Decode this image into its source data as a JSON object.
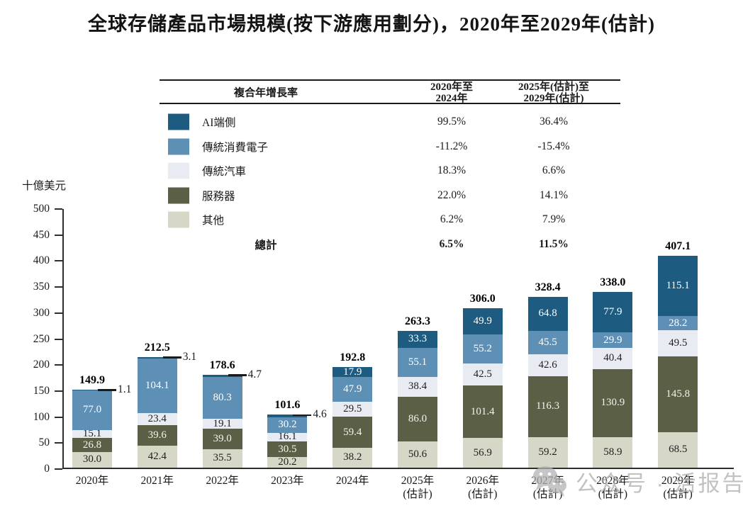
{
  "title": "全球存儲產品市場規模(按下游應用劃分)，2020年至2029年(估計)",
  "cagr_table": {
    "header": {
      "metric": "複合年增長率",
      "period1_line1": "2020年至",
      "period1_line2": "2024年",
      "period2_line1": "2025年(估計)至",
      "period2_line2": "2029年(估計)"
    },
    "rows": [
      {
        "label": "AI端側",
        "color": "#1D5B80",
        "period1": "99.5%",
        "period2": "36.4%"
      },
      {
        "label": "傳統消費電子",
        "color": "#5E90B6",
        "period1": "-11.2%",
        "period2": "-15.4%"
      },
      {
        "label": "傳統汽車",
        "color": "#E8ECF2",
        "period1": "18.3%",
        "period2": "6.6%"
      },
      {
        "label": "服務器",
        "color": "#5A5F45",
        "period1": "22.0%",
        "period2": "14.1%"
      },
      {
        "label": "其他",
        "color": "#D6D7C6",
        "period1": "6.2%",
        "period2": "7.9%"
      }
    ],
    "total_row": {
      "label": "總計",
      "period1": "6.5%",
      "period2": "11.5%"
    }
  },
  "chart_data": {
    "type": "bar",
    "stacked": true,
    "title": "全球存儲產品市場規模(按下游應用劃分)，2020年至2029年(估計)",
    "xlabel": "",
    "ylabel": "十億美元",
    "ylim": [
      0,
      500
    ],
    "ytick_interval": 50,
    "grid": false,
    "legend_position": "top-table-with-cagr",
    "categories": [
      "2020年",
      "2021年",
      "2022年",
      "2023年",
      "2024年",
      "2025年\n(估計)",
      "2026年\n(估計)",
      "2027年\n(估計)",
      "2028年\n(估計)",
      "2029年\n(估計)"
    ],
    "series": [
      {
        "name": "其他",
        "color": "#D6D7C6",
        "label_color": "#1f1f1f",
        "values": [
          30.0,
          42.4,
          35.5,
          20.2,
          38.2,
          50.6,
          56.9,
          59.2,
          58.9,
          68.5
        ]
      },
      {
        "name": "服務器",
        "color": "#5A5F45",
        "label_color": "#f4f4ee",
        "values": [
          26.8,
          39.6,
          39.0,
          30.5,
          59.4,
          86.0,
          101.4,
          116.3,
          130.9,
          145.8
        ]
      },
      {
        "name": "傳統汽車",
        "color": "#E8ECF2",
        "label_color": "#1f1f1f",
        "values": [
          15.1,
          23.4,
          19.1,
          16.1,
          29.5,
          38.4,
          42.5,
          42.6,
          40.4,
          49.5
        ]
      },
      {
        "name": "傳統消費電子",
        "color": "#5E90B6",
        "label_color": "#ffffff",
        "values": [
          77.0,
          104.1,
          80.3,
          30.2,
          47.9,
          55.1,
          55.2,
          45.5,
          29.9,
          28.2
        ]
      },
      {
        "name": "AI端側",
        "color": "#1D5B80",
        "label_color": "#ffffff",
        "values": [
          1.1,
          3.1,
          4.7,
          4.6,
          17.9,
          33.3,
          49.9,
          64.8,
          77.9,
          115.1
        ]
      }
    ],
    "totals": [
      "149.9",
      "212.5",
      "178.6",
      "101.6",
      "192.8",
      "263.3",
      "306.0",
      "328.4",
      "338.0",
      "407.1"
    ],
    "callouts": [
      {
        "category_index": 0,
        "series": "AI端側",
        "label": "1.1"
      },
      {
        "category_index": 1,
        "series": "AI端側",
        "label": "3.1"
      },
      {
        "category_index": 2,
        "series": "AI端側",
        "label": "4.7"
      },
      {
        "category_index": 3,
        "series": "AI端側",
        "label": "4.6"
      }
    ]
  },
  "watermark": {
    "icon": "wechat-icon",
    "text": "公众号 · 活报告"
  }
}
